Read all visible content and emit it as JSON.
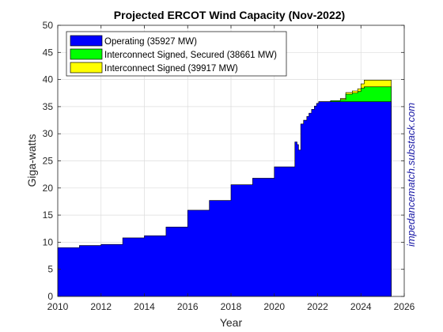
{
  "chart_data": {
    "type": "area",
    "title": "Projected ERCOT Wind Capacity (Nov-2022)",
    "xlabel": "Year",
    "ylabel": "Giga-watts",
    "xlim": [
      2010,
      2026
    ],
    "ylim": [
      0,
      50
    ],
    "x_ticks": [
      2010,
      2012,
      2014,
      2016,
      2018,
      2020,
      2022,
      2024,
      2026
    ],
    "y_ticks": [
      0,
      5,
      10,
      15,
      20,
      25,
      30,
      35,
      40,
      45,
      50
    ],
    "grid": true,
    "legend_position": "top-left",
    "watermark": "impedancematch.substack.com",
    "colors": {
      "operating": "#0000ff",
      "secured": "#00ff00",
      "signed": "#ffff00"
    },
    "series": [
      {
        "name": "Operating (35927 MW)",
        "key": "operating",
        "points": [
          [
            2010.0,
            9.0
          ],
          [
            2011.0,
            9.0
          ],
          [
            2011.0,
            9.4
          ],
          [
            2012.0,
            9.4
          ],
          [
            2012.0,
            9.6
          ],
          [
            2013.0,
            9.6
          ],
          [
            2013.0,
            10.8
          ],
          [
            2014.0,
            10.8
          ],
          [
            2014.0,
            11.2
          ],
          [
            2015.0,
            11.2
          ],
          [
            2015.0,
            12.8
          ],
          [
            2016.0,
            12.8
          ],
          [
            2016.0,
            15.9
          ],
          [
            2017.0,
            15.9
          ],
          [
            2017.0,
            17.7
          ],
          [
            2018.0,
            17.7
          ],
          [
            2018.0,
            20.6
          ],
          [
            2019.0,
            20.6
          ],
          [
            2019.0,
            21.8
          ],
          [
            2020.0,
            21.8
          ],
          [
            2020.0,
            23.9
          ],
          [
            2020.95,
            23.9
          ],
          [
            2020.95,
            28.5
          ],
          [
            2021.05,
            28.5
          ],
          [
            2021.05,
            28.0
          ],
          [
            2021.12,
            28.0
          ],
          [
            2021.12,
            27.0
          ],
          [
            2021.22,
            27.0
          ],
          [
            2021.22,
            31.8
          ],
          [
            2021.35,
            31.8
          ],
          [
            2021.35,
            32.5
          ],
          [
            2021.5,
            32.5
          ],
          [
            2021.5,
            33.2
          ],
          [
            2021.6,
            33.2
          ],
          [
            2021.6,
            33.8
          ],
          [
            2021.72,
            33.8
          ],
          [
            2021.72,
            34.5
          ],
          [
            2021.85,
            34.5
          ],
          [
            2021.85,
            35.1
          ],
          [
            2021.95,
            35.1
          ],
          [
            2021.95,
            35.6
          ],
          [
            2022.05,
            35.6
          ],
          [
            2022.05,
            35.9
          ],
          [
            2025.4,
            35.9
          ]
        ]
      },
      {
        "name": "Interconnect Signed, Secured (38661 MW)",
        "key": "secured",
        "points": [
          [
            2022.05,
            35.9
          ],
          [
            2022.6,
            35.9
          ],
          [
            2022.6,
            36.1
          ],
          [
            2023.05,
            36.1
          ],
          [
            2023.05,
            36.3
          ],
          [
            2023.3,
            36.3
          ],
          [
            2023.3,
            37.3
          ],
          [
            2023.6,
            37.3
          ],
          [
            2023.6,
            37.5
          ],
          [
            2023.85,
            37.5
          ],
          [
            2023.85,
            37.8
          ],
          [
            2024.0,
            37.8
          ],
          [
            2024.0,
            38.4
          ],
          [
            2024.15,
            38.4
          ],
          [
            2024.15,
            38.66
          ],
          [
            2025.4,
            38.66
          ]
        ]
      },
      {
        "name": "Interconnect Signed (39917 MW)",
        "key": "signed",
        "points": [
          [
            2022.05,
            35.9
          ],
          [
            2022.6,
            35.9
          ],
          [
            2022.6,
            36.1
          ],
          [
            2023.05,
            36.1
          ],
          [
            2023.05,
            36.5
          ],
          [
            2023.3,
            36.5
          ],
          [
            2023.3,
            37.6
          ],
          [
            2023.6,
            37.6
          ],
          [
            2023.6,
            37.9
          ],
          [
            2023.85,
            37.9
          ],
          [
            2023.85,
            38.3
          ],
          [
            2024.0,
            38.3
          ],
          [
            2024.0,
            39.2
          ],
          [
            2024.15,
            39.2
          ],
          [
            2024.15,
            39.9
          ],
          [
            2025.4,
            39.9
          ]
        ]
      }
    ]
  }
}
